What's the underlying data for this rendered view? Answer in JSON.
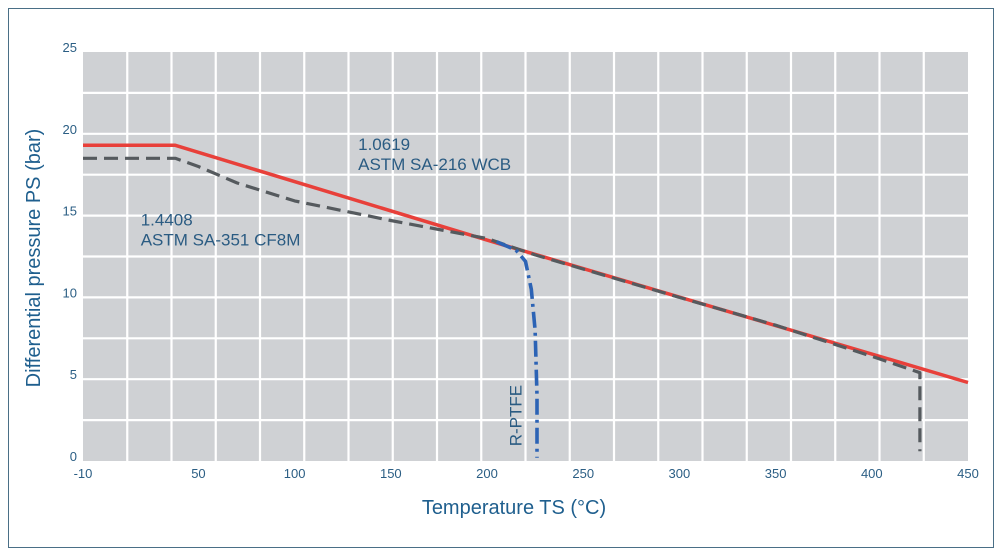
{
  "chart_data": {
    "type": "line",
    "xlabel": "Temperature TS (°C)",
    "ylabel": "Differential pressure PS (bar)",
    "xlim": [
      -10,
      450
    ],
    "ylim": [
      0,
      25
    ],
    "x_ticks": [
      -10,
      50,
      100,
      150,
      200,
      250,
      300,
      350,
      400,
      450
    ],
    "y_ticks": [
      0,
      5,
      10,
      15,
      20,
      25
    ],
    "grid": true,
    "colors": {
      "plot_bg": "#cfd1d4",
      "grid": "#ffffff",
      "frame": "#4a6f86"
    },
    "series": [
      {
        "name": "1.0619 ASTM SA-216 WCB",
        "color": "#e8403a",
        "style": "solid",
        "points": [
          [
            -10,
            19.3
          ],
          [
            38,
            19.3
          ],
          [
            200,
            13.5
          ],
          [
            450,
            4.8
          ]
        ]
      },
      {
        "name": "1.4408 ASTM SA-351 CF8M",
        "color": "#555a5e",
        "style": "dashed",
        "points": [
          [
            -10,
            18.5
          ],
          [
            38,
            18.5
          ],
          [
            50,
            18.0
          ],
          [
            70,
            17.0
          ],
          [
            100,
            15.9
          ],
          [
            150,
            14.7
          ],
          [
            200,
            13.6
          ],
          [
            225,
            12.6
          ],
          [
            300,
            10.0
          ],
          [
            350,
            8.3
          ],
          [
            400,
            6.4
          ],
          [
            425,
            5.4
          ],
          [
            425,
            0.6
          ]
        ]
      },
      {
        "name": "R-PTFE",
        "color": "#2c63b5",
        "style": "dashdot",
        "points": [
          [
            205,
            13.4
          ],
          [
            215,
            12.9
          ],
          [
            220,
            12.2
          ],
          [
            223,
            10.5
          ],
          [
            225,
            8.0
          ],
          [
            226,
            4.0
          ],
          [
            226,
            0.2
          ]
        ]
      }
    ],
    "annotations": [
      {
        "lines": [
          "1.0619",
          "ASTM SA-216 WCB"
        ],
        "x": 133,
        "y": 19.0
      },
      {
        "lines": [
          "1.4408",
          "ASTM SA-351 CF8M"
        ],
        "x": 20,
        "y": 14.4
      },
      {
        "lines": [
          "R-PTFE"
        ],
        "x": 218,
        "y": 0.9,
        "rotate": -90
      }
    ]
  }
}
